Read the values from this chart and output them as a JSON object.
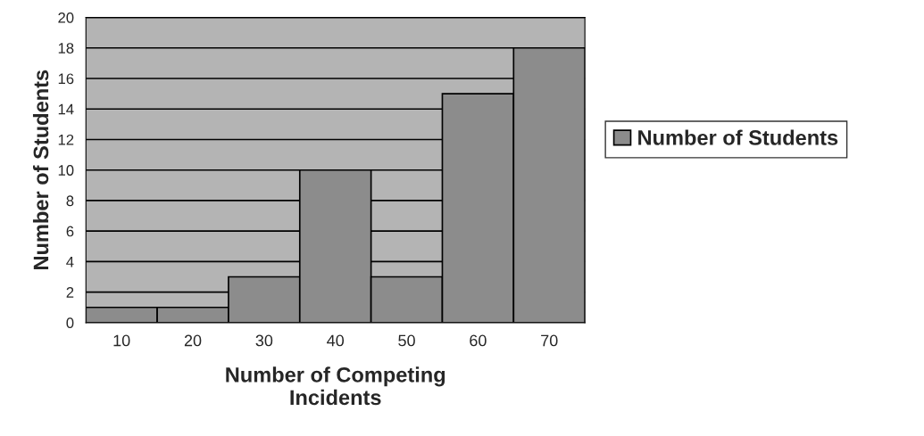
{
  "chart_data": {
    "type": "bar",
    "xlabel": "Number of Competing\nIncidents",
    "ylabel": "Number of Students",
    "categories": [
      "10",
      "20",
      "30",
      "40",
      "50",
      "60",
      "70"
    ],
    "series": [
      {
        "name": "Number of Students",
        "color": "#8c8c8c",
        "values": [
          1,
          1,
          3,
          10,
          3,
          15,
          18
        ]
      }
    ],
    "ylim": [
      0,
      20
    ],
    "yticks": [
      0,
      2,
      4,
      6,
      8,
      10,
      12,
      14,
      16,
      18,
      20
    ],
    "grid": "y",
    "legend": "right"
  }
}
